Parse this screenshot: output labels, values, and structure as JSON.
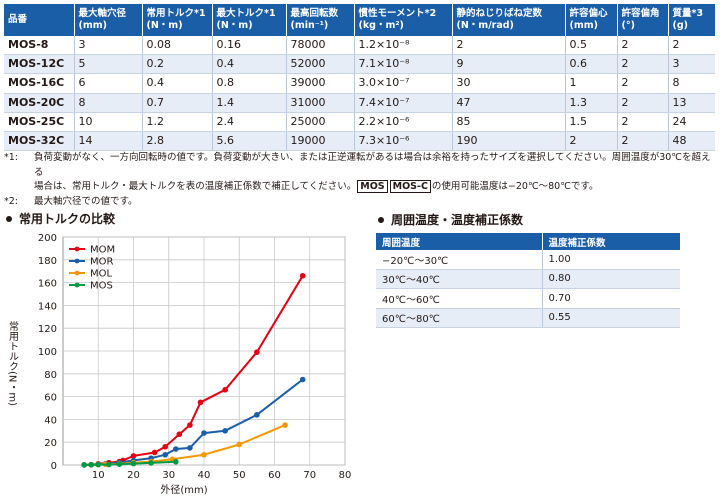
{
  "spec_table": {
    "headers": [
      {
        "label": "品番",
        "unit": ""
      },
      {
        "label": "最大軸穴径",
        "unit": "(mm)"
      },
      {
        "label": "常用トルク*1",
        "unit": "(N・m)"
      },
      {
        "label": "最大トルク*1",
        "unit": "(N・m)"
      },
      {
        "label": "最高回転数",
        "unit": "(min⁻¹)"
      },
      {
        "label": "慣性モーメント*2",
        "unit": "(kg・m²)"
      },
      {
        "label": "静的ねじりばね定数",
        "unit": "(N・m/rad)"
      },
      {
        "label": "許容偏心",
        "unit": "(mm)"
      },
      {
        "label": "許容偏角",
        "unit": "(°)"
      },
      {
        "label": "質量*3",
        "unit": "(g)"
      }
    ],
    "rows": [
      [
        "MOS-8",
        "3",
        "0.08",
        "0.16",
        "78000",
        "1.2×10⁻⁸",
        "2",
        "0.5",
        "2",
        "2"
      ],
      [
        "MOS-12C",
        "5",
        "0.2",
        "0.4",
        "52000",
        "7.1×10⁻⁸",
        "9",
        "0.6",
        "2",
        "3"
      ],
      [
        "MOS-16C",
        "6",
        "0.4",
        "0.8",
        "39000",
        "3.0×10⁻⁷",
        "30",
        "1",
        "2",
        "8"
      ],
      [
        "MOS-20C",
        "8",
        "0.7",
        "1.4",
        "31000",
        "7.4×10⁻⁷",
        "47",
        "1.3",
        "2",
        "13"
      ],
      [
        "MOS-25C",
        "10",
        "1.2",
        "2.4",
        "25000",
        "2.2×10⁻⁶",
        "85",
        "1.5",
        "2",
        "24"
      ],
      [
        "MOS-32C",
        "14",
        "2.8",
        "5.6",
        "19000",
        "7.3×10⁻⁶",
        "190",
        "2",
        "2",
        "48"
      ]
    ]
  },
  "notes": {
    "note1_mark": "*1:",
    "note1_line1": "負荷変動がなく、一方向回転時の値です。負荷変動が大きい、または正逆運転があるは場合は余裕を持ったサイズを選択してください。周囲温度が30℃を超える",
    "note1_line2_pre": "場合は、常用トルク・最大トルクを表の温度補正係数で補正してください。",
    "tag_mos": "MOS",
    "tag_mosc": "MOS-C",
    "note1_line2_post": "の使用可能温度は−20℃〜80℃です。",
    "note2_mark": "*2:",
    "note2_text": "最大軸穴径での値です。"
  },
  "chart_title": "常用トルクの比較",
  "chart_data": {
    "type": "line",
    "title": "常用トルクの比較",
    "xlabel": "外径(mm)",
    "ylabel": "常用トルク(N・m)",
    "xlim": [
      0,
      80
    ],
    "ylim": [
      0,
      200
    ],
    "xticks": [
      10,
      20,
      30,
      40,
      50,
      60,
      70,
      80
    ],
    "yticks": [
      0,
      20,
      40,
      60,
      80,
      100,
      120,
      140,
      160,
      180,
      200
    ],
    "legend": "top-left",
    "series": [
      {
        "name": "MOM",
        "color": "#e60012",
        "x": [
          6,
          8,
          10,
          13,
          16,
          17,
          20,
          26,
          29,
          33,
          36,
          39,
          46,
          55,
          68
        ],
        "y": [
          0.1,
          0.3,
          1,
          2,
          3,
          4,
          8,
          11,
          16,
          27,
          35,
          55,
          66,
          99,
          166
        ]
      },
      {
        "name": "MOR",
        "color": "#1a5ea8",
        "x": [
          6,
          8,
          10,
          12,
          16,
          20,
          25,
          29,
          32,
          36,
          40,
          46,
          55,
          68
        ],
        "y": [
          0.1,
          0.3,
          0.6,
          1,
          2,
          4,
          6,
          9,
          14,
          15,
          28,
          30,
          44,
          75
        ]
      },
      {
        "name": "MOL",
        "color": "#f39800",
        "x": [
          6,
          8,
          10,
          12,
          16,
          20,
          25,
          31,
          40,
          50,
          63
        ],
        "y": [
          0.1,
          0.2,
          0.4,
          0.6,
          1,
          2,
          3,
          5,
          9,
          18,
          35
        ]
      },
      {
        "name": "MOS",
        "color": "#009944",
        "x": [
          6,
          8,
          10,
          13,
          16,
          20,
          25,
          32
        ],
        "y": [
          0.08,
          0.2,
          0.3,
          0.4,
          0.7,
          1.2,
          1.8,
          2.8
        ]
      }
    ]
  },
  "temp_title": "周囲温度・温度補正係数",
  "temp_table": {
    "headers": [
      "周囲温度",
      "温度補正係数"
    ],
    "rows": [
      [
        "−20℃〜30℃",
        "1.00"
      ],
      [
        "30℃〜40℃",
        "0.80"
      ],
      [
        "40℃〜60℃",
        "0.70"
      ],
      [
        "60℃〜80℃",
        "0.55"
      ]
    ]
  }
}
